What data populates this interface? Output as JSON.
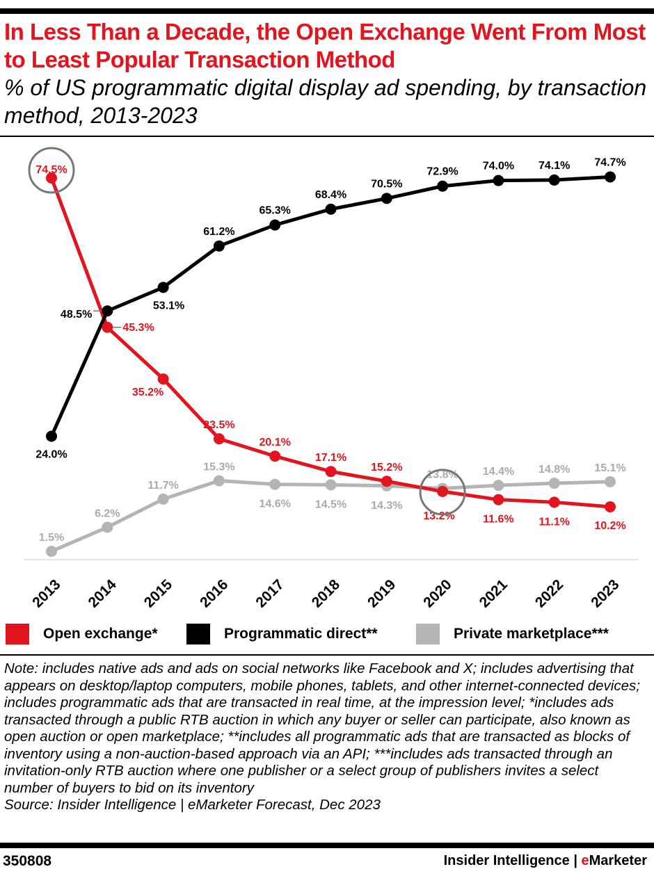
{
  "title": "In Less Than a Decade, the Open Exchange Went From Most to Least Popular Transaction Method",
  "subtitle": "% of US programmatic digital display ad spending, by transaction method, 2013-2023",
  "chart_data": {
    "type": "line",
    "categories": [
      "2013",
      "2014",
      "2015",
      "2016",
      "2017",
      "2018",
      "2019",
      "2020",
      "2021",
      "2022",
      "2023"
    ],
    "series": [
      {
        "name": "Open exchange*",
        "color": "#e4141e",
        "values": [
          74.5,
          45.3,
          35.2,
          23.5,
          20.1,
          17.1,
          15.2,
          13.2,
          11.6,
          11.1,
          10.2
        ]
      },
      {
        "name": "Programmatic direct**",
        "color": "#000000",
        "values": [
          24.0,
          48.5,
          53.1,
          61.2,
          65.3,
          68.4,
          70.5,
          72.9,
          74.0,
          74.1,
          74.7
        ]
      },
      {
        "name": "Private marketplace***",
        "color": "#b4b4b4",
        "values": [
          1.5,
          6.2,
          11.7,
          15.3,
          14.6,
          14.5,
          14.3,
          13.8,
          14.4,
          14.8,
          15.1
        ]
      }
    ],
    "label_format": "%",
    "grid": false,
    "legend": "bottom",
    "highlighted": [
      {
        "series": "Open exchange*",
        "category": "2013"
      },
      {
        "series": "Open exchange*",
        "category": "2020"
      }
    ]
  },
  "legend": {
    "items": [
      "Open exchange*",
      "Programmatic direct**",
      "Private marketplace***"
    ]
  },
  "note": "Note: includes native ads and ads on social networks like Facebook and X; includes advertising that appears on desktop/laptop computers, mobile phones, tablets, and other internet-connected devices; includes programmatic ads that are transacted in real time, at the impression level; *includes ads transacted through a public RTB auction in which any buyer or seller can participate, also known as open auction or open marketplace; **includes all programmatic ads that are transacted as blocks of inventory using a non-auction-based approach via an API; ***includes ads transacted through an invitation-only RTB auction where one publisher or a select group of publishers invites a select number of buyers to bid on its inventory",
  "source": "Source: Insider Intelligence | eMarketer Forecast, Dec 2023",
  "footer": {
    "id": "350808",
    "brand_prefix": "Insider Intelligence | ",
    "brand_e": "e",
    "brand_rest": "Marketer"
  }
}
